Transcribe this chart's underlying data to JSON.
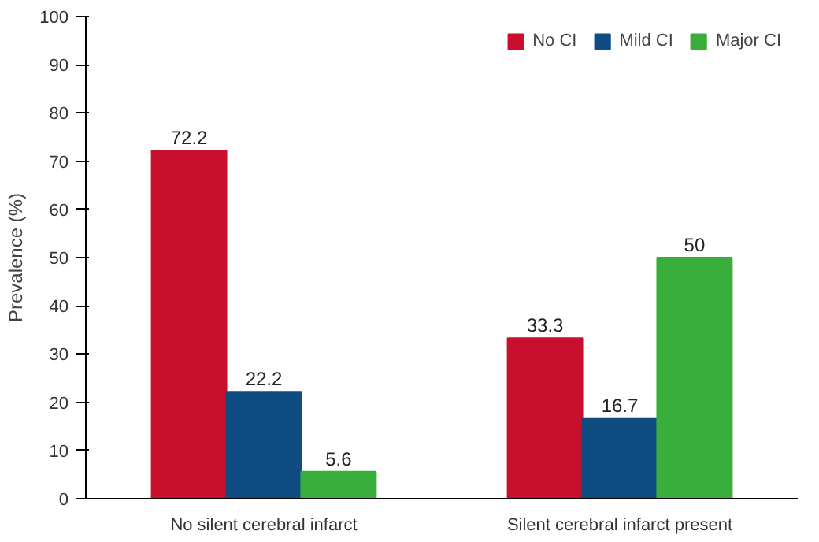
{
  "chart_data": {
    "type": "bar",
    "ylabel": "Prevalence (%)",
    "categories": [
      "No silent cerebral infarct",
      "Silent cerebral infarct present"
    ],
    "series": [
      {
        "name": "No CI",
        "color": "#c8102e",
        "values": [
          72.2,
          33.3
        ]
      },
      {
        "name": "Mild CI",
        "color": "#0e4c82",
        "values": [
          22.2,
          16.7
        ]
      },
      {
        "name": "Major CI",
        "color": "#3aae3a",
        "values": [
          5.6,
          50
        ]
      }
    ],
    "ylim": [
      0,
      100
    ],
    "yticks": [
      0,
      10,
      20,
      30,
      40,
      50,
      60,
      70,
      80,
      90,
      100
    ],
    "grid": false,
    "legend": "top right",
    "data_labels": true
  }
}
